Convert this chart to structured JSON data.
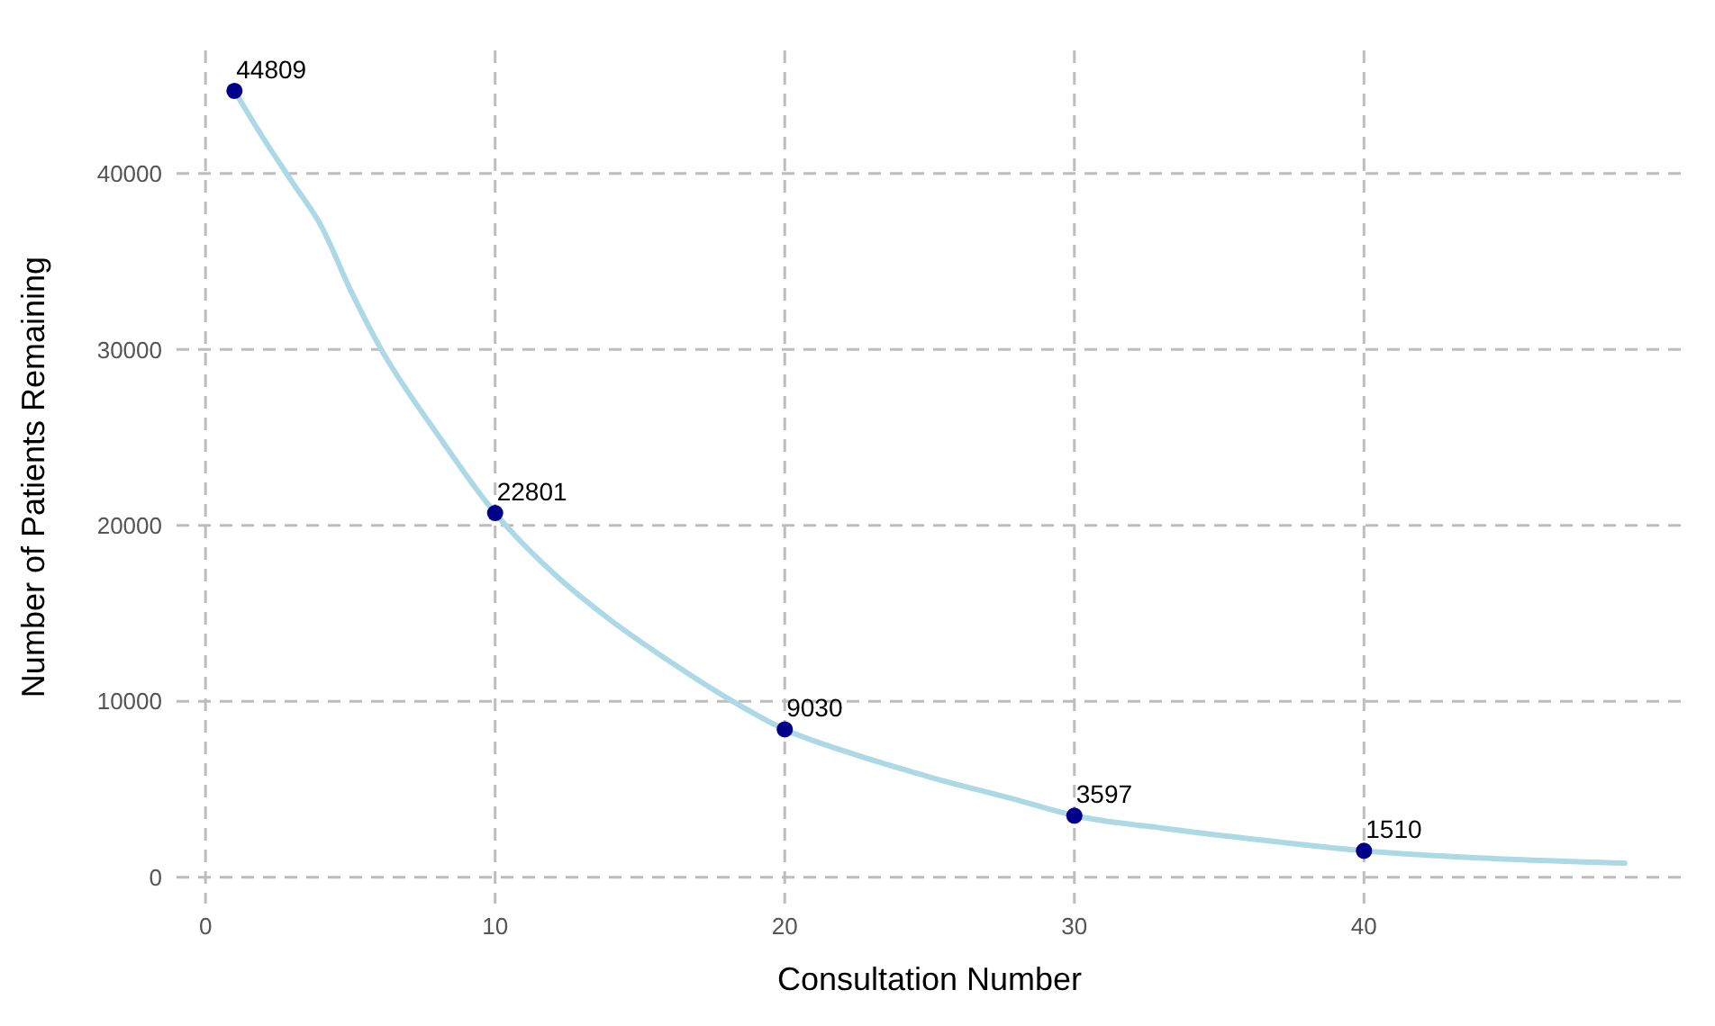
{
  "chart_data": {
    "type": "line",
    "xlabel": "Consultation Number",
    "ylabel": "Number of Patients Remaining",
    "xlim": [
      -1,
      51
    ],
    "xticks": [
      0,
      10,
      20,
      30,
      40
    ],
    "ylim": [
      -1500,
      47000
    ],
    "yticks": [
      0,
      10000,
      20000,
      30000,
      40000
    ],
    "grid": true,
    "line_style": "solid",
    "marker": "none",
    "series": [
      {
        "color": "#add8e6",
        "x": [
          1,
          2,
          3,
          4,
          5,
          6,
          8,
          10,
          12,
          14,
          16,
          18,
          20,
          22,
          25,
          28,
          30,
          33,
          36,
          40,
          44,
          49
        ],
        "values": [
          44700,
          42000,
          39500,
          37000,
          33400,
          30200,
          25200,
          20700,
          17300,
          14600,
          12300,
          10200,
          8400,
          7200,
          5700,
          4400,
          3500,
          2800,
          2200,
          1500,
          1100,
          800
        ]
      },
      {
        "type": "scatter",
        "color": "#00008b",
        "marker": "circle",
        "x": [
          1,
          10,
          20,
          30,
          40
        ],
        "values": [
          44700,
          20700,
          8400,
          3500,
          1500
        ]
      }
    ],
    "annotations": [
      {
        "text": "44809",
        "x": 1,
        "y": 44700
      },
      {
        "text": "22801",
        "x": 10,
        "y": 20700
      },
      {
        "text": "9030",
        "x": 20,
        "y": 8400
      },
      {
        "text": "3597",
        "x": 30,
        "y": 3500
      },
      {
        "text": "1510",
        "x": 40,
        "y": 1500
      }
    ]
  }
}
